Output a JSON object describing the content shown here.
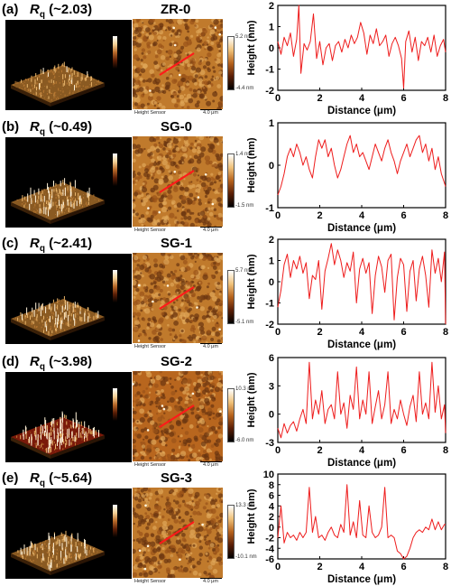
{
  "panels": [
    {
      "letter": "(a)",
      "rq_symbol": "R",
      "rq_sub": "q",
      "rq_value": "(~2.03)",
      "sample": "ZR-0",
      "scale_max": "5.2 nm",
      "scale_min": "-4.4 nm",
      "height_sensor": "Height Sensor",
      "scale_bar": "4.0 μm",
      "chart_data": {
        "type": "line",
        "xlabel": "Distance (μm)",
        "ylabel": "Height (nm)",
        "xlim": [
          0,
          8
        ],
        "ylim": [
          -2,
          2
        ],
        "xticks": [
          0,
          2,
          4,
          6,
          8
        ],
        "yticks": [
          -2,
          -1,
          0,
          1,
          2
        ],
        "series": [
          {
            "color": "#ee1c1c",
            "x": [
              0,
              0.15,
              0.3,
              0.45,
              0.6,
              0.75,
              0.9,
              1.0,
              1.1,
              1.25,
              1.4,
              1.55,
              1.7,
              1.85,
              2.0,
              2.15,
              2.3,
              2.45,
              2.6,
              2.75,
              2.9,
              3.05,
              3.2,
              3.35,
              3.5,
              3.65,
              3.8,
              3.95,
              4.1,
              4.25,
              4.4,
              4.55,
              4.7,
              4.85,
              5.0,
              5.15,
              5.3,
              5.45,
              5.6,
              5.75,
              5.9,
              6.0,
              6.1,
              6.25,
              6.4,
              6.55,
              6.7,
              6.85,
              7.0,
              7.15,
              7.3,
              7.45,
              7.6,
              7.75,
              7.9,
              8.0
            ],
            "y": [
              0.3,
              -0.3,
              0.5,
              0.1,
              0.7,
              -0.4,
              0.4,
              2.0,
              -1.2,
              0.2,
              -0.1,
              0.3,
              1.6,
              -0.5,
              0.3,
              -0.8,
              0.0,
              0.2,
              -0.6,
              0.1,
              0.3,
              -0.2,
              0.4,
              0.0,
              0.6,
              0.2,
              0.5,
              1.2,
              0.7,
              -0.3,
              0.6,
              0.2,
              0.9,
              0.1,
              0.3,
              0.6,
              -0.4,
              0.2,
              0.5,
              0.1,
              -0.5,
              -1.9,
              0.3,
              0.8,
              -0.2,
              0.5,
              -0.6,
              0.3,
              0.1,
              0.5,
              -0.2,
              0.6,
              -0.4,
              0.1,
              0.4,
              -0.2
            ]
          }
        ]
      }
    },
    {
      "letter": "(b)",
      "rq_symbol": "R",
      "rq_sub": "q",
      "rq_value": "(~0.49)",
      "sample": "SG-0",
      "scale_max": "1.4 nm",
      "scale_min": "-1.5 nm",
      "height_sensor": "Height Sensor",
      "scale_bar": "4.0 μm",
      "chart_data": {
        "type": "line",
        "xlabel": "Distance (μm)",
        "ylabel": "Height (nm)",
        "xlim": [
          0,
          8
        ],
        "ylim": [
          -1,
          1
        ],
        "xticks": [
          0,
          2,
          4,
          6,
          8
        ],
        "yticks": [
          -1,
          0,
          1
        ],
        "series": [
          {
            "color": "#ee1c1c",
            "x": [
              0,
              0.15,
              0.3,
              0.45,
              0.6,
              0.75,
              0.9,
              1.05,
              1.2,
              1.35,
              1.5,
              1.65,
              1.8,
              1.95,
              2.1,
              2.25,
              2.4,
              2.55,
              2.7,
              2.85,
              3.0,
              3.15,
              3.3,
              3.45,
              3.6,
              3.75,
              3.9,
              4.05,
              4.2,
              4.35,
              4.5,
              4.65,
              4.8,
              4.95,
              5.1,
              5.25,
              5.4,
              5.55,
              5.7,
              5.85,
              6.0,
              6.15,
              6.3,
              6.45,
              6.6,
              6.75,
              6.9,
              7.05,
              7.2,
              7.35,
              7.5,
              7.65,
              7.8,
              8.0
            ],
            "y": [
              -0.7,
              -0.5,
              -0.2,
              0.2,
              0.4,
              0.2,
              0.5,
              0.3,
              0.0,
              0.2,
              -0.1,
              -0.3,
              0.2,
              0.6,
              0.4,
              0.6,
              0.2,
              0.4,
              0.0,
              -0.3,
              -0.1,
              0.2,
              0.5,
              0.7,
              0.3,
              0.5,
              0.2,
              0.3,
              0.1,
              -0.1,
              0.2,
              0.5,
              0.3,
              0.1,
              0.4,
              0.6,
              0.3,
              0.1,
              -0.2,
              0.1,
              0.3,
              0.5,
              0.2,
              0.4,
              0.6,
              0.7,
              0.3,
              0.5,
              0.1,
              0.4,
              -0.1,
              0.2,
              -0.2,
              -0.5
            ]
          }
        ]
      }
    },
    {
      "letter": "(c)",
      "rq_symbol": "R",
      "rq_sub": "q",
      "rq_value": "(~2.41)",
      "sample": "SG-1",
      "scale_max": "5.7 nm",
      "scale_min": "-5.1 nm",
      "height_sensor": "Height Sensor",
      "scale_bar": "4.0 μm",
      "chart_data": {
        "type": "line",
        "xlabel": "Distance (μm)",
        "ylabel": "Height (nm)",
        "xlim": [
          0,
          8
        ],
        "ylim": [
          -2,
          2
        ],
        "xticks": [
          0,
          2,
          4,
          6,
          8
        ],
        "yticks": [
          -2,
          -1,
          0,
          1,
          2
        ],
        "series": [
          {
            "color": "#ee1c1c",
            "x": [
              0,
              0.15,
              0.3,
              0.45,
              0.6,
              0.75,
              0.9,
              1.05,
              1.2,
              1.35,
              1.5,
              1.65,
              1.8,
              1.95,
              2.1,
              2.25,
              2.4,
              2.55,
              2.7,
              2.85,
              3.0,
              3.15,
              3.3,
              3.45,
              3.6,
              3.75,
              3.9,
              4.05,
              4.2,
              4.35,
              4.5,
              4.65,
              4.8,
              4.95,
              5.1,
              5.25,
              5.4,
              5.55,
              5.7,
              5.85,
              6.0,
              6.15,
              6.3,
              6.45,
              6.6,
              6.75,
              6.9,
              7.05,
              7.2,
              7.35,
              7.5,
              7.65,
              7.8,
              7.95,
              8.0
            ],
            "y": [
              -1.2,
              -0.4,
              0.8,
              1.3,
              0.2,
              1.0,
              0.6,
              1.2,
              0.4,
              0.9,
              -0.8,
              0.3,
              0.1,
              1.0,
              -1.3,
              0.5,
              1.1,
              1.8,
              0.8,
              1.5,
              1.0,
              0.2,
              0.9,
              0.5,
              1.4,
              -1.0,
              0.6,
              1.1,
              0.4,
              0.9,
              -1.5,
              0.3,
              1.2,
              0.7,
              -0.5,
              1.0,
              1.3,
              -1.8,
              0.2,
              1.1,
              0.8,
              -1.4,
              0.5,
              1.0,
              -0.9,
              0.6,
              1.2,
              0.3,
              -1.2,
              1.5,
              0.4,
              1.1,
              0.0,
              1.4,
              -2.0
            ]
          }
        ]
      }
    },
    {
      "letter": "(d)",
      "rq_symbol": "R",
      "rq_sub": "q",
      "rq_value": "(~3.98)",
      "sample": "SG-2",
      "scale_max": "10.3 nm",
      "scale_min": "-6.0 nm",
      "height_sensor": "Height Sensor",
      "scale_bar": "4.0 μm",
      "chart_data": {
        "type": "line",
        "xlabel": "Distance (μm)",
        "ylabel": "Height (nm)",
        "xlim": [
          0,
          8
        ],
        "ylim": [
          -3,
          6
        ],
        "xticks": [
          0,
          2,
          4,
          6,
          8
        ],
        "yticks": [
          -3,
          0,
          3,
          6
        ],
        "series": [
          {
            "color": "#ee1c1c",
            "x": [
              0,
              0.15,
              0.3,
              0.45,
              0.6,
              0.75,
              0.9,
              1.05,
              1.2,
              1.35,
              1.5,
              1.65,
              1.8,
              1.95,
              2.1,
              2.25,
              2.4,
              2.55,
              2.7,
              2.85,
              3.0,
              3.15,
              3.3,
              3.45,
              3.6,
              3.75,
              3.9,
              4.05,
              4.2,
              4.35,
              4.5,
              4.65,
              4.8,
              4.95,
              5.1,
              5.25,
              5.4,
              5.55,
              5.7,
              5.85,
              6.0,
              6.15,
              6.3,
              6.45,
              6.6,
              6.75,
              6.9,
              7.05,
              7.2,
              7.35,
              7.5,
              7.65,
              7.8,
              7.95,
              8.0
            ],
            "y": [
              -1.5,
              -2.5,
              -1.0,
              -2.0,
              -1.2,
              -0.8,
              -1.8,
              -0.5,
              0.5,
              -1.0,
              5.5,
              -0.5,
              1.5,
              0.0,
              2.5,
              -1.0,
              0.5,
              1.0,
              -0.5,
              4.5,
              0.0,
              1.2,
              -1.5,
              2.0,
              0.5,
              5.0,
              -0.5,
              1.5,
              0.0,
              4.5,
              -1.0,
              0.8,
              2.5,
              -0.5,
              1.0,
              4.5,
              -1.0,
              0.5,
              -0.5,
              1.5,
              0.0,
              -1.2,
              0.8,
              2.0,
              -0.8,
              4.5,
              0.0,
              1.2,
              -0.5,
              5.5,
              0.2,
              3.0,
              -0.5,
              1.0,
              -2.0
            ]
          }
        ]
      }
    },
    {
      "letter": "(e)",
      "rq_symbol": "R",
      "rq_sub": "q",
      "rq_value": "(~5.64)",
      "sample": "SG-3",
      "scale_max": "13.3 nm",
      "scale_min": "-10.1 nm",
      "height_sensor": "Height Sensor",
      "scale_bar": "4.0 μm",
      "chart_data": {
        "type": "line",
        "xlabel": "Distance (μm)",
        "ylabel": "Height (nm)",
        "xlim": [
          0,
          8
        ],
        "ylim": [
          -6,
          10
        ],
        "xticks": [
          0,
          2,
          4,
          6,
          8
        ],
        "yticks": [
          -6,
          -4,
          -2,
          0,
          2,
          4,
          6,
          8,
          10
        ],
        "series": [
          {
            "color": "#ee1c1c",
            "x": [
              0,
              0.15,
              0.3,
              0.45,
              0.6,
              0.75,
              0.9,
              1.05,
              1.2,
              1.35,
              1.5,
              1.65,
              1.8,
              1.95,
              2.1,
              2.25,
              2.4,
              2.55,
              2.7,
              2.85,
              3.0,
              3.15,
              3.3,
              3.45,
              3.6,
              3.75,
              3.9,
              4.05,
              4.2,
              4.35,
              4.5,
              4.65,
              4.8,
              4.95,
              5.1,
              5.25,
              5.4,
              5.55,
              5.7,
              5.85,
              6.0,
              6.15,
              6.3,
              6.45,
              6.6,
              6.75,
              6.9,
              7.05,
              7.2,
              7.35,
              7.5,
              7.65,
              7.8,
              7.95,
              8.0
            ],
            "y": [
              -2.0,
              4.0,
              -3.0,
              -1.0,
              -2.0,
              -1.5,
              -2.5,
              -1.0,
              -2.0,
              -1.0,
              7.5,
              -1.0,
              2.0,
              -2.0,
              -1.5,
              -2.5,
              -1.0,
              0.0,
              -1.5,
              -2.0,
              0.5,
              -1.0,
              8.0,
              -1.5,
              1.0,
              -2.0,
              5.0,
              -1.5,
              -2.0,
              4.0,
              -1.0,
              -2.0,
              -1.5,
              0.0,
              7.5,
              -2.0,
              -1.5,
              -2.0,
              -4.5,
              -5.0,
              -6.0,
              -5.5,
              -4.0,
              -2.0,
              -1.0,
              -0.5,
              -1.0,
              0.0,
              -0.5,
              1.5,
              -0.5,
              1.0,
              -0.5,
              0.5,
              0.5
            ]
          }
        ]
      }
    }
  ]
}
